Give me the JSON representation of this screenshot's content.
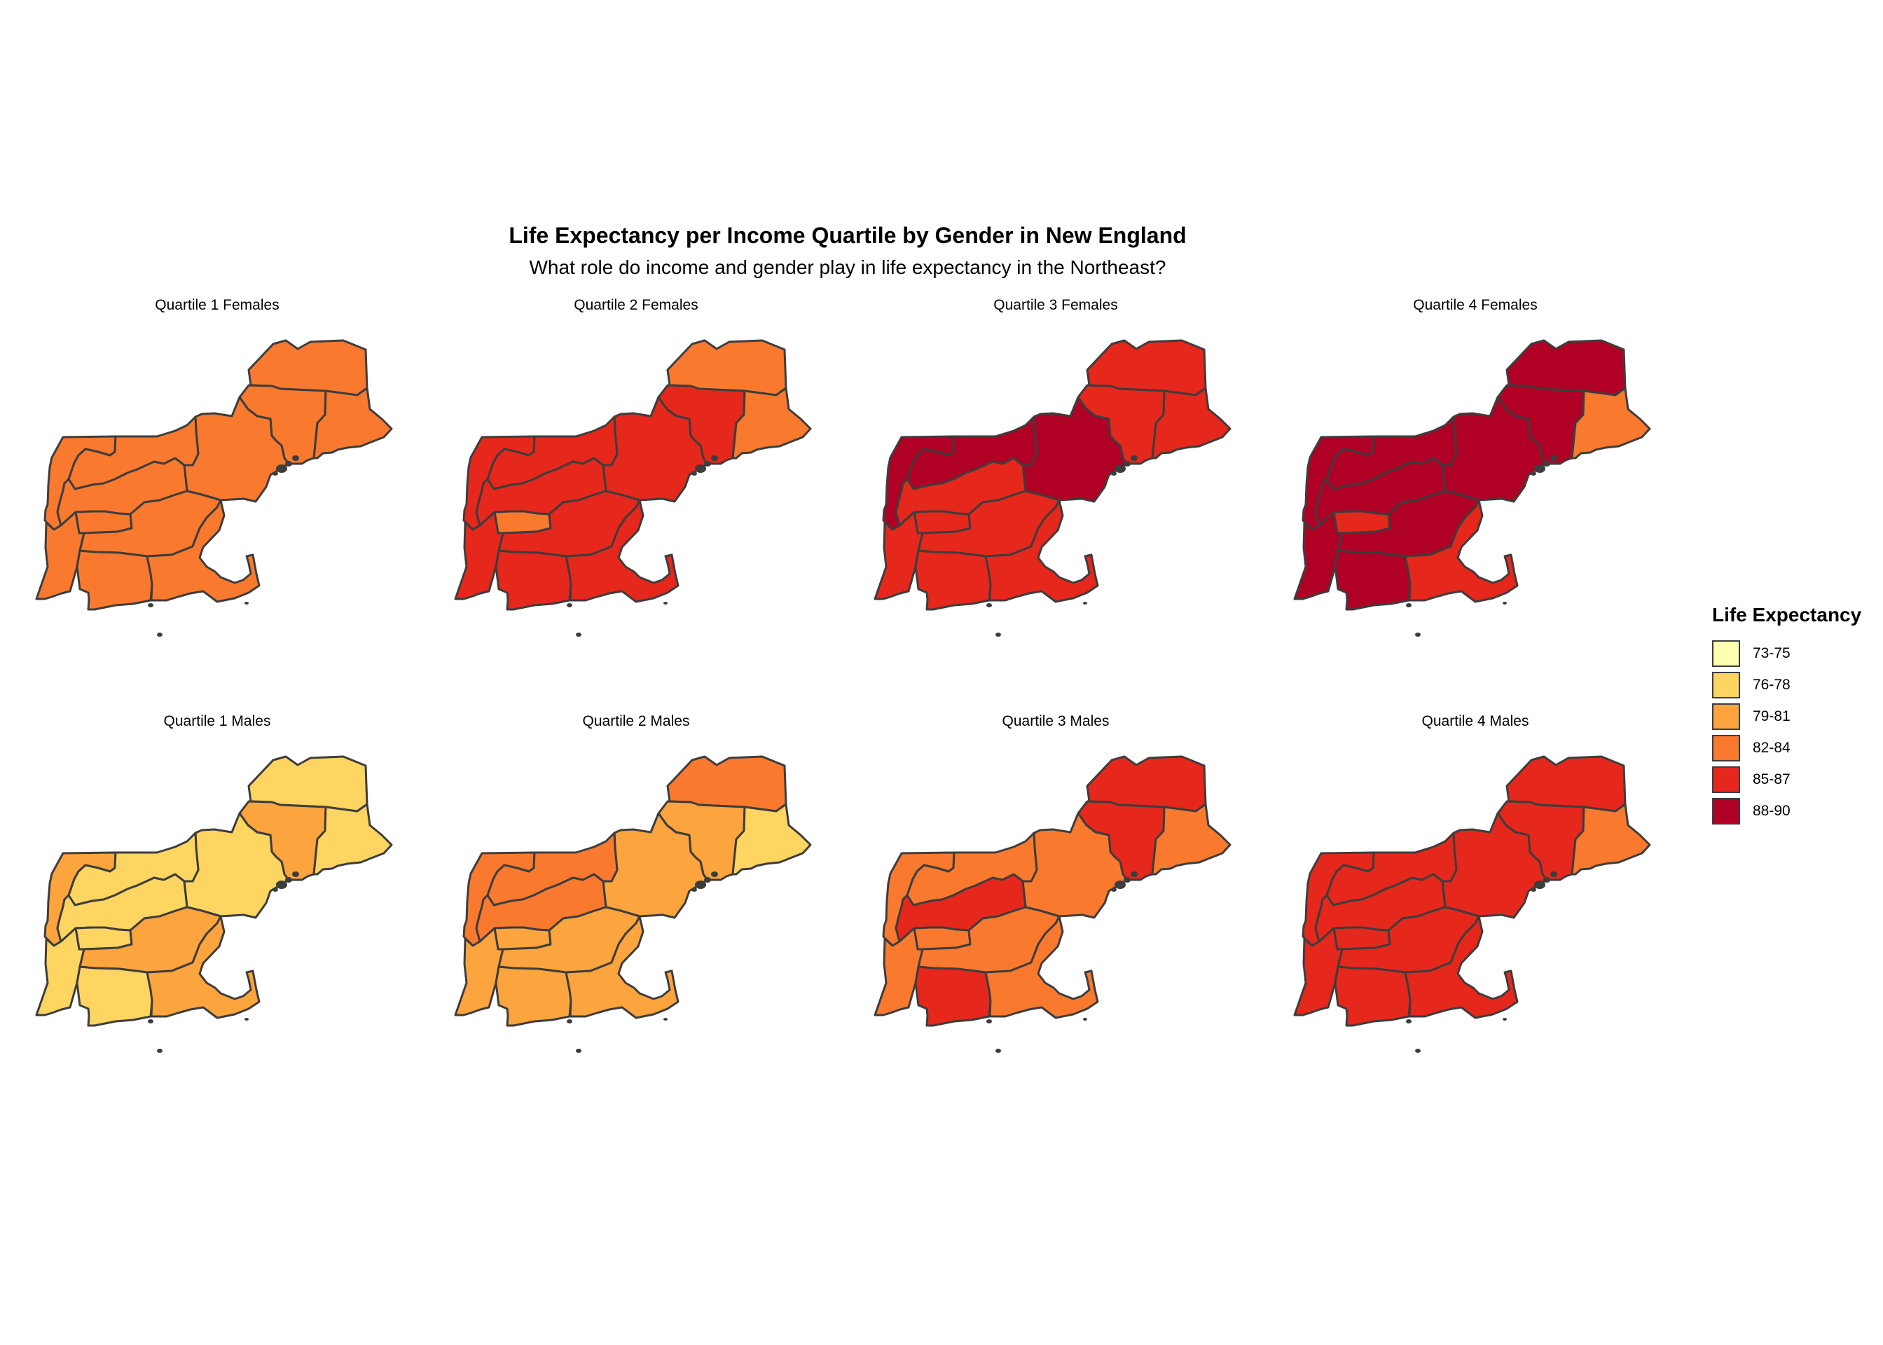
{
  "title": "Life Expectancy per Income Quartile by Gender in New England",
  "subtitle": "What role do income and gender play in life expectancy in the Northeast?",
  "legend": {
    "title": "Life Expectancy",
    "items": [
      {
        "label": "73-75",
        "color": "#ffffb2"
      },
      {
        "label": "76-78",
        "color": "#fed560"
      },
      {
        "label": "79-81",
        "color": "#fca43e"
      },
      {
        "label": "82-84",
        "color": "#f97a2f"
      },
      {
        "label": "85-87",
        "color": "#e6271c"
      },
      {
        "label": "88-90",
        "color": "#b00026"
      }
    ]
  },
  "regions": [
    "maine-north",
    "maine-central",
    "maine-east",
    "new-hampshire",
    "vermont-north",
    "vermont-central",
    "new-york-east",
    "new-york-southeast",
    "massachusetts-west",
    "massachusetts-central",
    "connecticut",
    "massachusetts-east"
  ],
  "panels": [
    {
      "title": "Quartile 1 Females",
      "classes": [
        3,
        3,
        3,
        3,
        3,
        3,
        3,
        3,
        3,
        3,
        3,
        3
      ]
    },
    {
      "title": "Quartile 2 Females",
      "classes": [
        3,
        4,
        3,
        4,
        4,
        4,
        4,
        3,
        4,
        4,
        4,
        4
      ]
    },
    {
      "title": "Quartile 3 Females",
      "classes": [
        4,
        4,
        4,
        5,
        5,
        5,
        4,
        4,
        4,
        4,
        4,
        4
      ]
    },
    {
      "title": "Quartile 4 Females",
      "classes": [
        5,
        5,
        3,
        5,
        5,
        5,
        5,
        4,
        5,
        5,
        5,
        4
      ]
    },
    {
      "title": "Quartile 1 Males",
      "classes": [
        1,
        2,
        1,
        1,
        2,
        1,
        1,
        1,
        1,
        2,
        1,
        2
      ]
    },
    {
      "title": "Quartile 2 Males",
      "classes": [
        3,
        2,
        1,
        2,
        3,
        3,
        3,
        2,
        2,
        2,
        2,
        2
      ]
    },
    {
      "title": "Quartile 3 Males",
      "classes": [
        4,
        4,
        3,
        3,
        3,
        3,
        4,
        3,
        3,
        3,
        4,
        3
      ]
    },
    {
      "title": "Quartile 4 Males",
      "classes": [
        4,
        4,
        3,
        4,
        4,
        4,
        4,
        4,
        4,
        4,
        4,
        4
      ]
    }
  ]
}
